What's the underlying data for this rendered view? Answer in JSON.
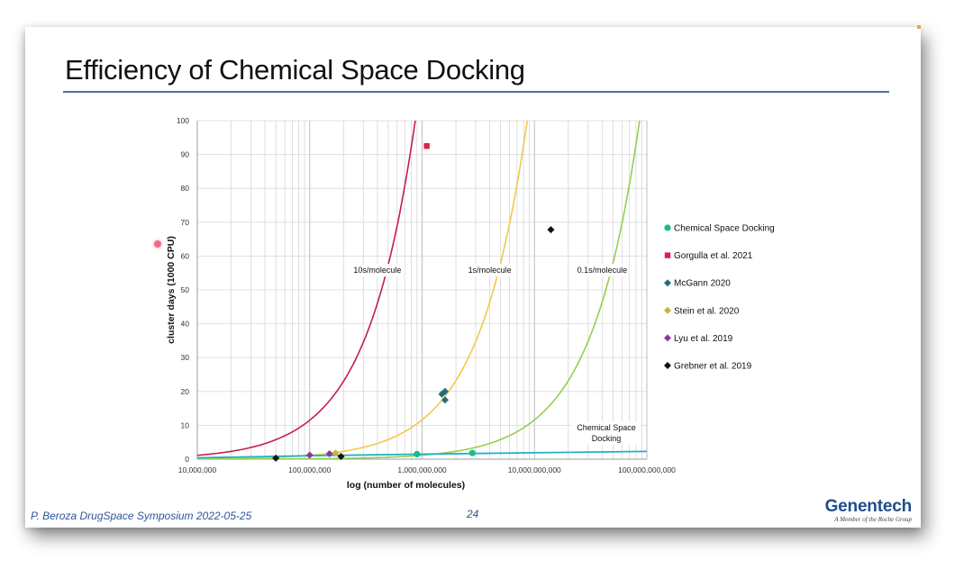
{
  "slide": {
    "title": "Efficiency of Chemical Space Docking",
    "footer_left": "P. Beroza DrugSpace Symposium 2022-05-25",
    "page_number": "24",
    "brand_name": "Genentech",
    "brand_sub": "A Member of the Roche Group"
  },
  "colors": {
    "title_rule": "#4f6fa8",
    "footer_text": "#2f5597",
    "curve_10s": "#c0204a",
    "curve_1s": "#f2c84b",
    "curve_01s": "#92d050",
    "chemical_space_line": "#20b2c8"
  },
  "chart_data": {
    "type": "scatter",
    "xlabel": "log (number of molecules)",
    "ylabel": "cluster days (1000 CPU)",
    "x_scale": "log",
    "xlim": [
      10000000,
      100000000000
    ],
    "ylim": [
      0,
      100
    ],
    "x_ticks": [
      10000000,
      100000000,
      1000000000,
      10000000000,
      100000000000
    ],
    "x_tick_labels": [
      "10,000,000",
      "100,000,000",
      "1,000,000,000",
      "10,000,000,000",
      "100,000,000,000"
    ],
    "y_ticks": [
      0,
      10,
      20,
      30,
      40,
      50,
      60,
      70,
      80,
      90,
      100
    ],
    "grid": true,
    "legend_position": "right",
    "curves": [
      {
        "label": "10s/molecule",
        "color": "#c0204a",
        "x": [
          10000000,
          20000000,
          50000000,
          100000000,
          200000000,
          400000000,
          600000000,
          800000000,
          1000000000,
          1070000000
        ],
        "y": [
          1.2,
          2.3,
          5.8,
          11.6,
          23.1,
          46.3,
          69.4,
          92.6,
          100,
          100
        ],
        "annotation": {
          "text": "10s/molecule",
          "x": 400000000,
          "y": 55
        }
      },
      {
        "label": "1s/molecule",
        "color": "#f2c84b",
        "x": [
          10000000,
          100000000,
          200000000,
          500000000,
          1000000000,
          2000000000,
          4000000000,
          6000000000,
          8000000000,
          8600000000
        ],
        "y": [
          0.12,
          1.16,
          2.3,
          5.8,
          11.6,
          23.1,
          46.3,
          69.4,
          92.6,
          100
        ],
        "annotation": {
          "text": "1s/molecule",
          "x": 4000000000,
          "y": 55
        }
      },
      {
        "label": "0.1s/molecule",
        "color": "#92d050",
        "x": [
          10000000,
          1000000000,
          2000000000,
          5000000000,
          10000000000,
          20000000000,
          40000000000,
          60000000000,
          80000000000,
          86000000000
        ],
        "y": [
          0.01,
          1.16,
          2.3,
          5.8,
          11.6,
          23.1,
          46.3,
          69.4,
          92.6,
          100
        ],
        "annotation": {
          "text": "0.1s/molecule",
          "x": 40000000000,
          "y": 55
        }
      },
      {
        "label": "Chemical Space Docking",
        "color": "#20b2c8",
        "x": [
          10000000,
          100000000,
          1000000000,
          10000000000,
          100000000000
        ],
        "y": [
          0.4,
          1.0,
          1.5,
          1.9,
          2.3
        ],
        "annotation": {
          "text": "Chemical Space Docking",
          "x": 40000000000,
          "y": 7
        }
      }
    ],
    "series": [
      {
        "name": "Chemical Space Docking",
        "color": "#1abc8c",
        "marker": "circle",
        "points": [
          [
            900000000,
            1.5
          ],
          [
            2800000000,
            1.8
          ]
        ]
      },
      {
        "name": "Gorgulla et al. 2021",
        "color": "#e0204a",
        "marker": "square",
        "points": [
          [
            1100000000,
            92.5
          ]
        ]
      },
      {
        "name": "McGann 2020",
        "color": "#1f6f7a",
        "marker": "diamond",
        "points": [
          [
            1500000000,
            19.2
          ],
          [
            1600000000,
            20.0
          ],
          [
            1600000000,
            17.5
          ]
        ]
      },
      {
        "name": "Stein et al. 2020",
        "color": "#c8b43c",
        "marker": "diamond",
        "points": [
          [
            170000000,
            1.8
          ]
        ]
      },
      {
        "name": "Lyu et al. 2019",
        "color": "#8a3aa0",
        "marker": "diamond",
        "points": [
          [
            100000000,
            1.2
          ],
          [
            150000000,
            1.6
          ]
        ]
      },
      {
        "name": "Grebner et al. 2019",
        "color": "#111111",
        "marker": "diamond",
        "points": [
          [
            50000000,
            0.3
          ],
          [
            190000000,
            0.8
          ],
          [
            14000000000,
            67.8
          ]
        ]
      }
    ]
  }
}
